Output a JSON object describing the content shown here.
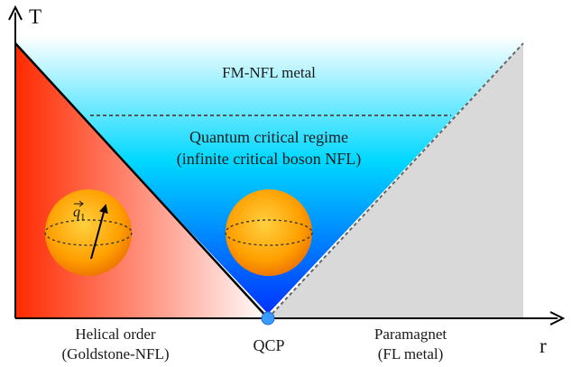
{
  "axes": {
    "x_label": "r",
    "y_label": "T"
  },
  "regions": {
    "fm_nfl": "FM-NFL metal",
    "qc_line1": "Quantum critical regime",
    "qc_line2": "(infinite critical boson NFL)",
    "helical_line1": "Helical order",
    "helical_line2": "(Goldstone-NFL)",
    "para_line1": "Paramagnet",
    "para_line2": "(FL metal)"
  },
  "point": {
    "label": "QCP"
  },
  "vector": {
    "label": "q",
    "subscript": "1"
  },
  "colors": {
    "helical_dark": "#ff2a00",
    "helical_light": "#ffffff",
    "qc_deep": "#0033ff",
    "qc_mid": "#00d8ff",
    "qc_top": "#ffffff",
    "paramagnet": "#d9d9d9",
    "sphere": "#ffa000",
    "qcp_dot": "#3a9bff"
  }
}
